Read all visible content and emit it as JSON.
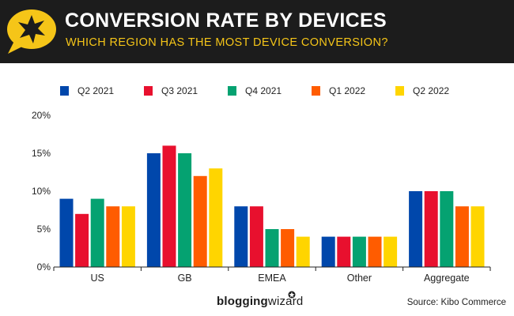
{
  "header": {
    "title": "CONVERSION RATE BY DEVICES",
    "subtitle": "WHICH REGION HAS THE MOST DEVICE CONVERSION?",
    "logo_icon": "star-speech-bubble-icon"
  },
  "footer": {
    "brand_bold": "blogging",
    "brand_light": "wizard",
    "source": "Source: Kibo Commerce"
  },
  "colors": {
    "header_bg": "#1c1c1c",
    "accent": "#f5c518"
  },
  "chart_data": {
    "type": "bar",
    "title": "CONVERSION RATE BY DEVICES",
    "categories": [
      "US",
      "GB",
      "EMEA",
      "Other",
      "Aggregate"
    ],
    "series": [
      {
        "name": "Q2 2021",
        "color": "#0047ab",
        "values": [
          9,
          15,
          8,
          4,
          10
        ]
      },
      {
        "name": "Q3 2021",
        "color": "#e8102e",
        "values": [
          7,
          16,
          8,
          4,
          10
        ]
      },
      {
        "name": "Q4 2021",
        "color": "#05a271",
        "values": [
          9,
          15,
          5,
          4,
          10
        ]
      },
      {
        "name": "Q1 2022",
        "color": "#ff5c00",
        "values": [
          8,
          12,
          5,
          4,
          8
        ]
      },
      {
        "name": "Q2 2022",
        "color": "#ffd500",
        "values": [
          8,
          13,
          4,
          4,
          8
        ]
      }
    ],
    "yticks": [
      "0%",
      "5%",
      "10%",
      "15%",
      "20%"
    ],
    "ytick_values": [
      0,
      5,
      10,
      15,
      20
    ],
    "ylim": [
      0,
      20
    ],
    "xlabel": "",
    "ylabel": "",
    "legend_position": "top"
  }
}
